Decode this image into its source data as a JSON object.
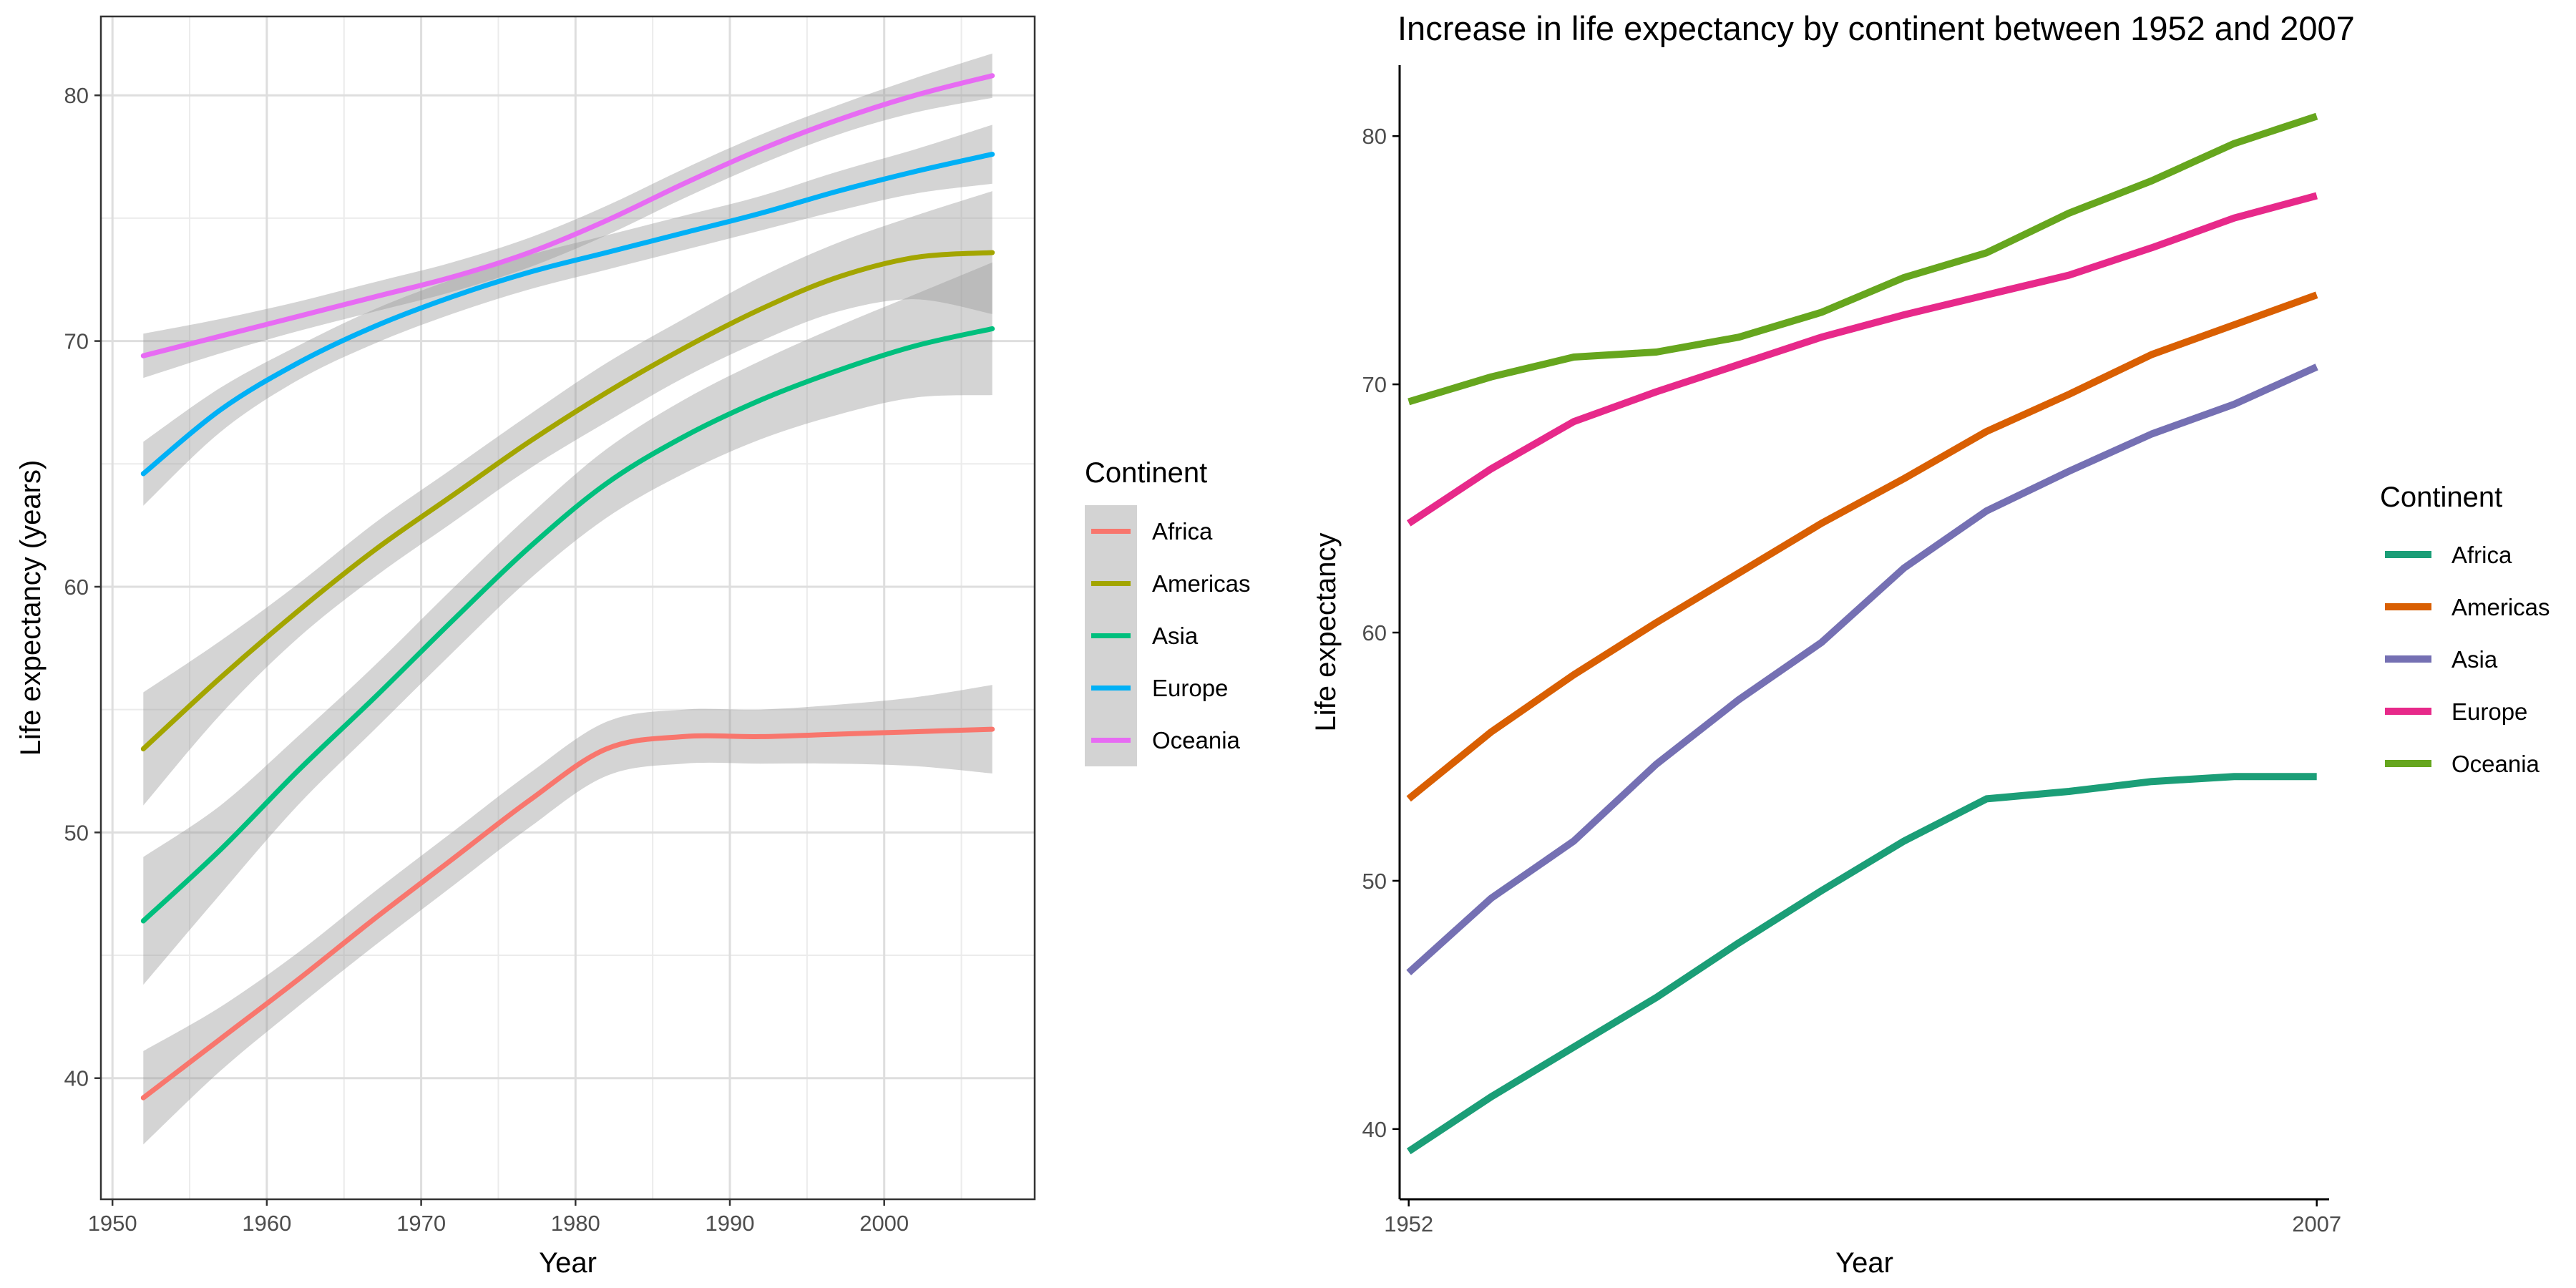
{
  "chart_data": [
    {
      "type": "line",
      "title": "",
      "xlabel": "Year",
      "ylabel": "Life expectancy (years)",
      "xlim": [
        1949.25,
        2009.75
      ],
      "ylim": [
        35.07,
        83.21
      ],
      "x_ticks": [
        1950,
        1960,
        1970,
        1980,
        1990,
        2000
      ],
      "y_ticks": [
        40,
        50,
        60,
        70,
        80
      ],
      "grid": true,
      "smoothed": true,
      "confidence_band": true,
      "legend_title": "Continent",
      "legend_position": "right",
      "x": [
        1952,
        1957,
        1962,
        1967,
        1972,
        1977,
        1982,
        1987,
        1992,
        1997,
        2002,
        2007
      ],
      "series": [
        {
          "name": "Africa",
          "color": "#F8766D",
          "values": [
            39.2,
            41.6,
            44.0,
            46.5,
            48.9,
            51.3,
            53.4,
            53.9,
            53.9,
            54.0,
            54.1,
            54.2
          ],
          "band": [
            1.9,
            1.3,
            1.1,
            1.1,
            1.1,
            1.1,
            1.1,
            1.1,
            1.1,
            1.2,
            1.4,
            1.8
          ]
        },
        {
          "name": "Americas",
          "color": "#A3A500",
          "values": [
            53.4,
            56.3,
            59.0,
            61.5,
            63.7,
            65.9,
            67.9,
            69.7,
            71.3,
            72.6,
            73.4,
            73.6
          ],
          "band": [
            2.3,
            1.5,
            1.1,
            1.1,
            1.1,
            1.1,
            1.2,
            1.2,
            1.3,
            1.4,
            1.7,
            2.5
          ]
        },
        {
          "name": "Asia",
          "color": "#00BF7D",
          "values": [
            46.4,
            49.3,
            52.5,
            55.5,
            58.6,
            61.6,
            64.2,
            66.1,
            67.6,
            68.8,
            69.8,
            70.5
          ],
          "band": [
            2.6,
            1.8,
            1.4,
            1.3,
            1.3,
            1.3,
            1.4,
            1.5,
            1.6,
            1.8,
            2.1,
            2.7
          ]
        },
        {
          "name": "Europe",
          "color": "#00B0F6",
          "values": [
            64.6,
            67.2,
            69.1,
            70.6,
            71.8,
            72.8,
            73.6,
            74.4,
            75.2,
            76.1,
            76.9,
            77.6
          ],
          "band": [
            1.3,
            0.9,
            0.7,
            0.7,
            0.7,
            0.7,
            0.7,
            0.7,
            0.7,
            0.8,
            0.9,
            1.2
          ]
        },
        {
          "name": "Oceania",
          "color": "#E76BF3",
          "values": [
            69.4,
            70.2,
            71.0,
            71.8,
            72.6,
            73.6,
            74.9,
            76.4,
            77.8,
            79.0,
            80.0,
            80.8
          ],
          "band": [
            0.9,
            0.7,
            0.6,
            0.6,
            0.6,
            0.6,
            0.6,
            0.6,
            0.6,
            0.6,
            0.7,
            0.9
          ]
        }
      ]
    },
    {
      "type": "line",
      "title": "Increase in life expectancy by continent between 1952 and 2007",
      "xlabel": "Year",
      "ylabel": "Life expectancy",
      "xlim": [
        1951.45,
        2007.75
      ],
      "ylim": [
        37.17,
        82.86
      ],
      "x_ticks": [
        1952,
        2007
      ],
      "y_ticks": [
        40,
        50,
        60,
        70,
        80
      ],
      "grid": false,
      "legend_title": "Continent",
      "legend_position": "right",
      "x": [
        1952,
        1957,
        1962,
        1967,
        1972,
        1977,
        1982,
        1987,
        1992,
        1997,
        2002,
        2007
      ],
      "series": [
        {
          "name": "Africa",
          "color": "#1B9E77",
          "values": [
            39.1,
            41.3,
            43.3,
            45.3,
            47.5,
            49.6,
            51.6,
            53.3,
            53.6,
            54.0,
            54.2,
            54.2
          ]
        },
        {
          "name": "Americas",
          "color": "#D95F02",
          "values": [
            53.3,
            56.0,
            58.3,
            60.4,
            62.4,
            64.4,
            66.2,
            68.1,
            69.6,
            71.2,
            72.4,
            73.6
          ]
        },
        {
          "name": "Asia",
          "color": "#7570B3",
          "values": [
            46.3,
            49.3,
            51.6,
            54.7,
            57.3,
            59.6,
            62.6,
            64.9,
            66.5,
            68.0,
            69.2,
            70.7
          ]
        },
        {
          "name": "Europe",
          "color": "#E7298A",
          "values": [
            64.4,
            66.6,
            68.5,
            69.7,
            70.8,
            71.9,
            72.8,
            73.6,
            74.4,
            75.5,
            76.7,
            77.6
          ]
        },
        {
          "name": "Oceania",
          "color": "#66A61E",
          "values": [
            69.3,
            70.3,
            71.1,
            71.3,
            71.9,
            72.9,
            74.3,
            75.3,
            76.9,
            78.2,
            79.7,
            80.8
          ]
        }
      ]
    }
  ]
}
